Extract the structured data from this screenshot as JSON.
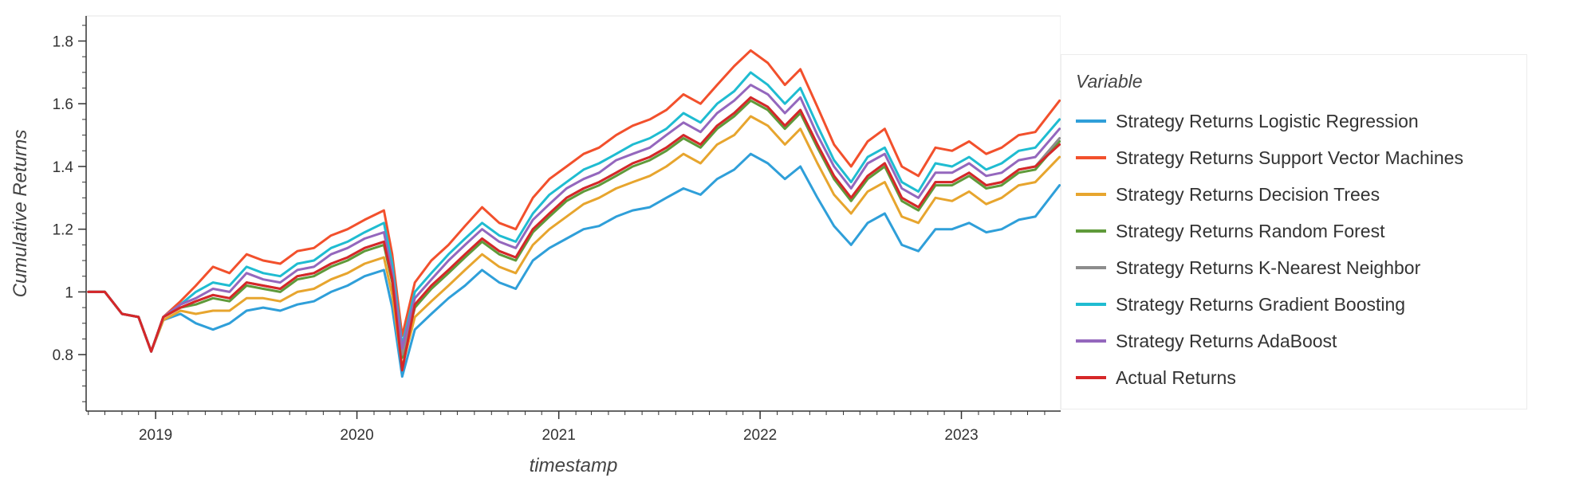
{
  "chart_data": {
    "type": "line",
    "title": "",
    "xlabel": "timestamp",
    "ylabel": "Cumulative Returns",
    "legend_title": "Variable",
    "legend_placement": "right",
    "x_ticks": [
      "2019",
      "2020",
      "2021",
      "2022",
      "2023"
    ],
    "y_ticks": [
      "0.8",
      "1",
      "1.2",
      "1.4",
      "1.6",
      "1.8"
    ],
    "xlim": [
      "2018-08-28",
      "2023-06-30"
    ],
    "ylim": [
      0.62,
      1.88
    ],
    "grid": false,
    "x": [
      "2018-09-01",
      "2018-10-01",
      "2018-11-01",
      "2018-12-01",
      "2018-12-24",
      "2019-01-15",
      "2019-02-15",
      "2019-03-15",
      "2019-04-15",
      "2019-05-15",
      "2019-06-15",
      "2019-07-15",
      "2019-08-15",
      "2019-09-15",
      "2019-10-15",
      "2019-11-15",
      "2019-12-15",
      "2020-01-15",
      "2020-02-19",
      "2020-03-05",
      "2020-03-23",
      "2020-04-15",
      "2020-05-15",
      "2020-06-15",
      "2020-07-15",
      "2020-08-15",
      "2020-09-15",
      "2020-10-15",
      "2020-11-15",
      "2020-12-15",
      "2021-01-15",
      "2021-02-15",
      "2021-03-15",
      "2021-04-15",
      "2021-05-15",
      "2021-06-15",
      "2021-07-15",
      "2021-08-15",
      "2021-09-15",
      "2021-10-15",
      "2021-11-15",
      "2021-12-15",
      "2022-01-15",
      "2022-02-15",
      "2022-03-15",
      "2022-04-15",
      "2022-05-15",
      "2022-06-15",
      "2022-07-15",
      "2022-08-15",
      "2022-09-15",
      "2022-10-15",
      "2022-11-15",
      "2022-12-15",
      "2023-01-15",
      "2023-02-15",
      "2023-03-15",
      "2023-04-15",
      "2023-05-15",
      "2023-06-28"
    ],
    "series": [
      {
        "name": "Strategy Returns Logistic Regression",
        "color": "#2f9fd9",
        "values": [
          1.0,
          1.0,
          0.93,
          0.92,
          0.81,
          0.91,
          0.93,
          0.9,
          0.88,
          0.9,
          0.94,
          0.95,
          0.94,
          0.96,
          0.97,
          1.0,
          1.02,
          1.05,
          1.07,
          0.95,
          0.73,
          0.88,
          0.93,
          0.98,
          1.02,
          1.07,
          1.03,
          1.01,
          1.1,
          1.14,
          1.17,
          1.2,
          1.21,
          1.24,
          1.26,
          1.27,
          1.3,
          1.33,
          1.31,
          1.36,
          1.39,
          1.44,
          1.41,
          1.36,
          1.4,
          1.3,
          1.21,
          1.15,
          1.22,
          1.25,
          1.15,
          1.13,
          1.2,
          1.2,
          1.22,
          1.19,
          1.2,
          1.23,
          1.24,
          1.34
        ]
      },
      {
        "name": "Strategy Returns Support Vector Machines",
        "color": "#f2502c",
        "values": [
          1.0,
          1.0,
          0.93,
          0.92,
          0.81,
          0.92,
          0.97,
          1.02,
          1.08,
          1.06,
          1.12,
          1.1,
          1.09,
          1.13,
          1.14,
          1.18,
          1.2,
          1.23,
          1.26,
          1.12,
          0.86,
          1.03,
          1.1,
          1.15,
          1.21,
          1.27,
          1.22,
          1.2,
          1.3,
          1.36,
          1.4,
          1.44,
          1.46,
          1.5,
          1.53,
          1.55,
          1.58,
          1.63,
          1.6,
          1.66,
          1.72,
          1.77,
          1.73,
          1.66,
          1.71,
          1.59,
          1.47,
          1.4,
          1.48,
          1.52,
          1.4,
          1.37,
          1.46,
          1.45,
          1.48,
          1.44,
          1.46,
          1.5,
          1.51,
          1.61
        ]
      },
      {
        "name": "Strategy Returns Decision Trees",
        "color": "#e7a52e",
        "values": [
          1.0,
          1.0,
          0.93,
          0.92,
          0.81,
          0.91,
          0.94,
          0.93,
          0.94,
          0.94,
          0.98,
          0.98,
          0.97,
          1.0,
          1.01,
          1.04,
          1.06,
          1.09,
          1.11,
          0.99,
          0.76,
          0.92,
          0.97,
          1.02,
          1.07,
          1.12,
          1.08,
          1.06,
          1.15,
          1.2,
          1.24,
          1.28,
          1.3,
          1.33,
          1.35,
          1.37,
          1.4,
          1.44,
          1.41,
          1.47,
          1.5,
          1.56,
          1.53,
          1.47,
          1.52,
          1.41,
          1.31,
          1.25,
          1.32,
          1.35,
          1.24,
          1.22,
          1.3,
          1.29,
          1.32,
          1.28,
          1.3,
          1.34,
          1.35,
          1.43
        ]
      },
      {
        "name": "Strategy Returns Random Forest",
        "color": "#5f9a3a",
        "values": [
          1.0,
          1.0,
          0.93,
          0.92,
          0.81,
          0.92,
          0.95,
          0.96,
          0.98,
          0.97,
          1.02,
          1.01,
          1.0,
          1.04,
          1.05,
          1.08,
          1.1,
          1.13,
          1.15,
          1.03,
          0.79,
          0.95,
          1.01,
          1.06,
          1.11,
          1.16,
          1.12,
          1.1,
          1.19,
          1.24,
          1.29,
          1.32,
          1.34,
          1.37,
          1.4,
          1.42,
          1.45,
          1.49,
          1.46,
          1.52,
          1.56,
          1.61,
          1.58,
          1.52,
          1.57,
          1.46,
          1.36,
          1.29,
          1.36,
          1.4,
          1.29,
          1.26,
          1.34,
          1.34,
          1.37,
          1.33,
          1.34,
          1.38,
          1.39,
          1.48
        ]
      },
      {
        "name": "Strategy Returns K-Nearest Neighbor",
        "color": "#8c8c8c",
        "values": [
          1.0,
          1.0,
          0.93,
          0.92,
          0.81,
          0.92,
          0.95,
          0.97,
          0.99,
          0.98,
          1.03,
          1.02,
          1.01,
          1.05,
          1.06,
          1.09,
          1.11,
          1.14,
          1.16,
          1.04,
          0.8,
          0.96,
          1.02,
          1.07,
          1.12,
          1.17,
          1.13,
          1.11,
          1.2,
          1.25,
          1.3,
          1.33,
          1.35,
          1.38,
          1.41,
          1.43,
          1.46,
          1.5,
          1.47,
          1.53,
          1.57,
          1.62,
          1.59,
          1.53,
          1.58,
          1.47,
          1.37,
          1.3,
          1.37,
          1.41,
          1.3,
          1.27,
          1.35,
          1.35,
          1.38,
          1.34,
          1.35,
          1.39,
          1.4,
          1.49
        ]
      },
      {
        "name": "Strategy Returns Gradient Boosting",
        "color": "#1fbcd1",
        "values": [
          1.0,
          1.0,
          0.93,
          0.92,
          0.81,
          0.92,
          0.96,
          1.0,
          1.03,
          1.02,
          1.08,
          1.06,
          1.05,
          1.09,
          1.1,
          1.14,
          1.16,
          1.19,
          1.22,
          1.09,
          0.83,
          1.0,
          1.06,
          1.12,
          1.17,
          1.22,
          1.18,
          1.16,
          1.25,
          1.31,
          1.35,
          1.39,
          1.41,
          1.44,
          1.47,
          1.49,
          1.52,
          1.57,
          1.54,
          1.6,
          1.64,
          1.7,
          1.66,
          1.6,
          1.65,
          1.53,
          1.42,
          1.35,
          1.43,
          1.46,
          1.35,
          1.32,
          1.41,
          1.4,
          1.43,
          1.39,
          1.41,
          1.45,
          1.46,
          1.55
        ]
      },
      {
        "name": "Strategy Returns AdaBoost",
        "color": "#9467bd",
        "values": [
          1.0,
          1.0,
          0.93,
          0.92,
          0.81,
          0.92,
          0.96,
          0.98,
          1.01,
          1.0,
          1.06,
          1.04,
          1.03,
          1.07,
          1.08,
          1.12,
          1.14,
          1.17,
          1.19,
          1.06,
          0.82,
          0.98,
          1.04,
          1.1,
          1.15,
          1.2,
          1.16,
          1.14,
          1.23,
          1.28,
          1.33,
          1.36,
          1.38,
          1.42,
          1.44,
          1.46,
          1.5,
          1.54,
          1.51,
          1.57,
          1.61,
          1.66,
          1.63,
          1.57,
          1.62,
          1.5,
          1.4,
          1.33,
          1.41,
          1.44,
          1.33,
          1.3,
          1.38,
          1.38,
          1.41,
          1.37,
          1.38,
          1.42,
          1.43,
          1.52
        ]
      },
      {
        "name": "Actual Returns",
        "color": "#d62728",
        "values": [
          1.0,
          1.0,
          0.93,
          0.92,
          0.81,
          0.92,
          0.95,
          0.97,
          0.99,
          0.98,
          1.03,
          1.02,
          1.01,
          1.05,
          1.06,
          1.09,
          1.11,
          1.14,
          1.16,
          1.04,
          0.75,
          0.96,
          1.02,
          1.07,
          1.12,
          1.17,
          1.13,
          1.11,
          1.2,
          1.25,
          1.3,
          1.33,
          1.35,
          1.38,
          1.41,
          1.43,
          1.46,
          1.5,
          1.47,
          1.53,
          1.57,
          1.62,
          1.59,
          1.53,
          1.58,
          1.47,
          1.37,
          1.3,
          1.37,
          1.41,
          1.3,
          1.27,
          1.35,
          1.35,
          1.38,
          1.34,
          1.35,
          1.39,
          1.4,
          1.47
        ]
      }
    ]
  }
}
